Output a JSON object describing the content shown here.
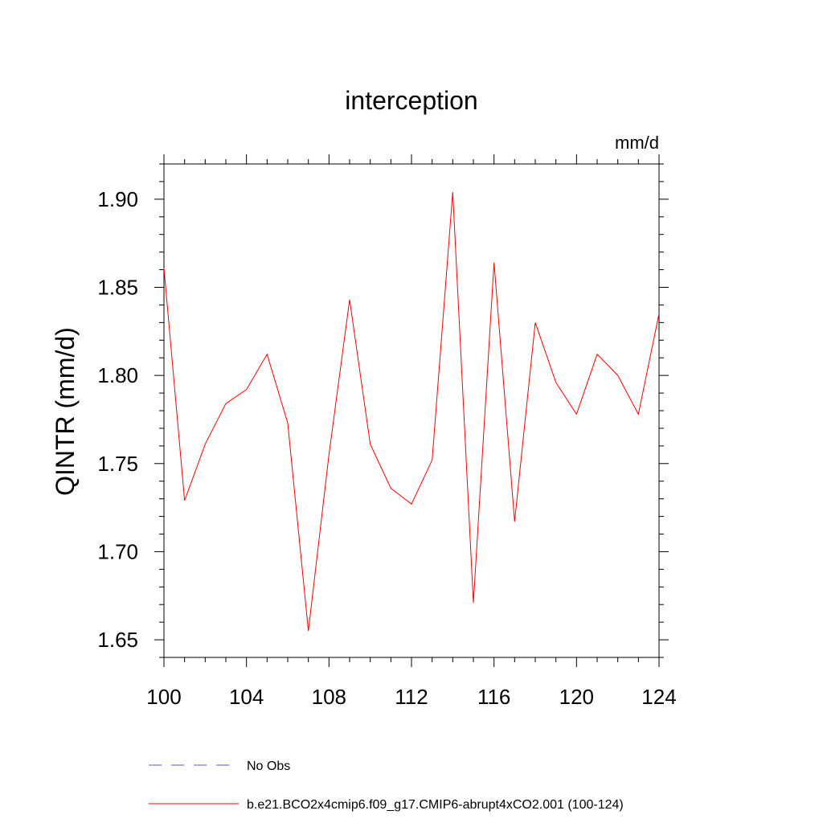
{
  "chart_data": {
    "type": "line",
    "title": "interception",
    "units_label": "mm/d",
    "ylabel": "QINTR  (mm/d)",
    "xlabel": "",
    "xlim": [
      100,
      124
    ],
    "ylim": [
      1.64,
      1.92
    ],
    "x_ticks": [
      "100",
      "104",
      "108",
      "112",
      "116",
      "120",
      "124"
    ],
    "y_ticks": [
      "1.65",
      "1.70",
      "1.75",
      "1.80",
      "1.85",
      "1.90"
    ],
    "grid": false,
    "legend_position": "bottom",
    "series": [
      {
        "name": "b.e21.BCO2x4cmip6.f09_g17.CMIP6-abrupt4xCO2.001 (100-124)",
        "color": "#ff0000",
        "line_style": "solid",
        "x": [
          100,
          101,
          102,
          103,
          104,
          105,
          106,
          107,
          108,
          109,
          110,
          111,
          112,
          113,
          114,
          115,
          116,
          117,
          118,
          119,
          120,
          121,
          122,
          123,
          124
        ],
        "values": [
          1.861,
          1.729,
          1.761,
          1.784,
          1.792,
          1.812,
          1.773,
          1.655,
          1.755,
          1.843,
          1.761,
          1.736,
          1.727,
          1.752,
          1.904,
          1.671,
          1.864,
          1.717,
          1.83,
          1.796,
          1.778,
          1.812,
          1.8,
          1.778,
          1.835
        ]
      }
    ],
    "legend": [
      {
        "label": "No Obs",
        "color": "#5a4fcf",
        "line_style": "dashed"
      },
      {
        "label": "b.e21.BCO2x4cmip6.f09_g17.CMIP6-abrupt4xCO2.001 (100-124)",
        "color": "#ff0000",
        "line_style": "solid"
      }
    ]
  }
}
